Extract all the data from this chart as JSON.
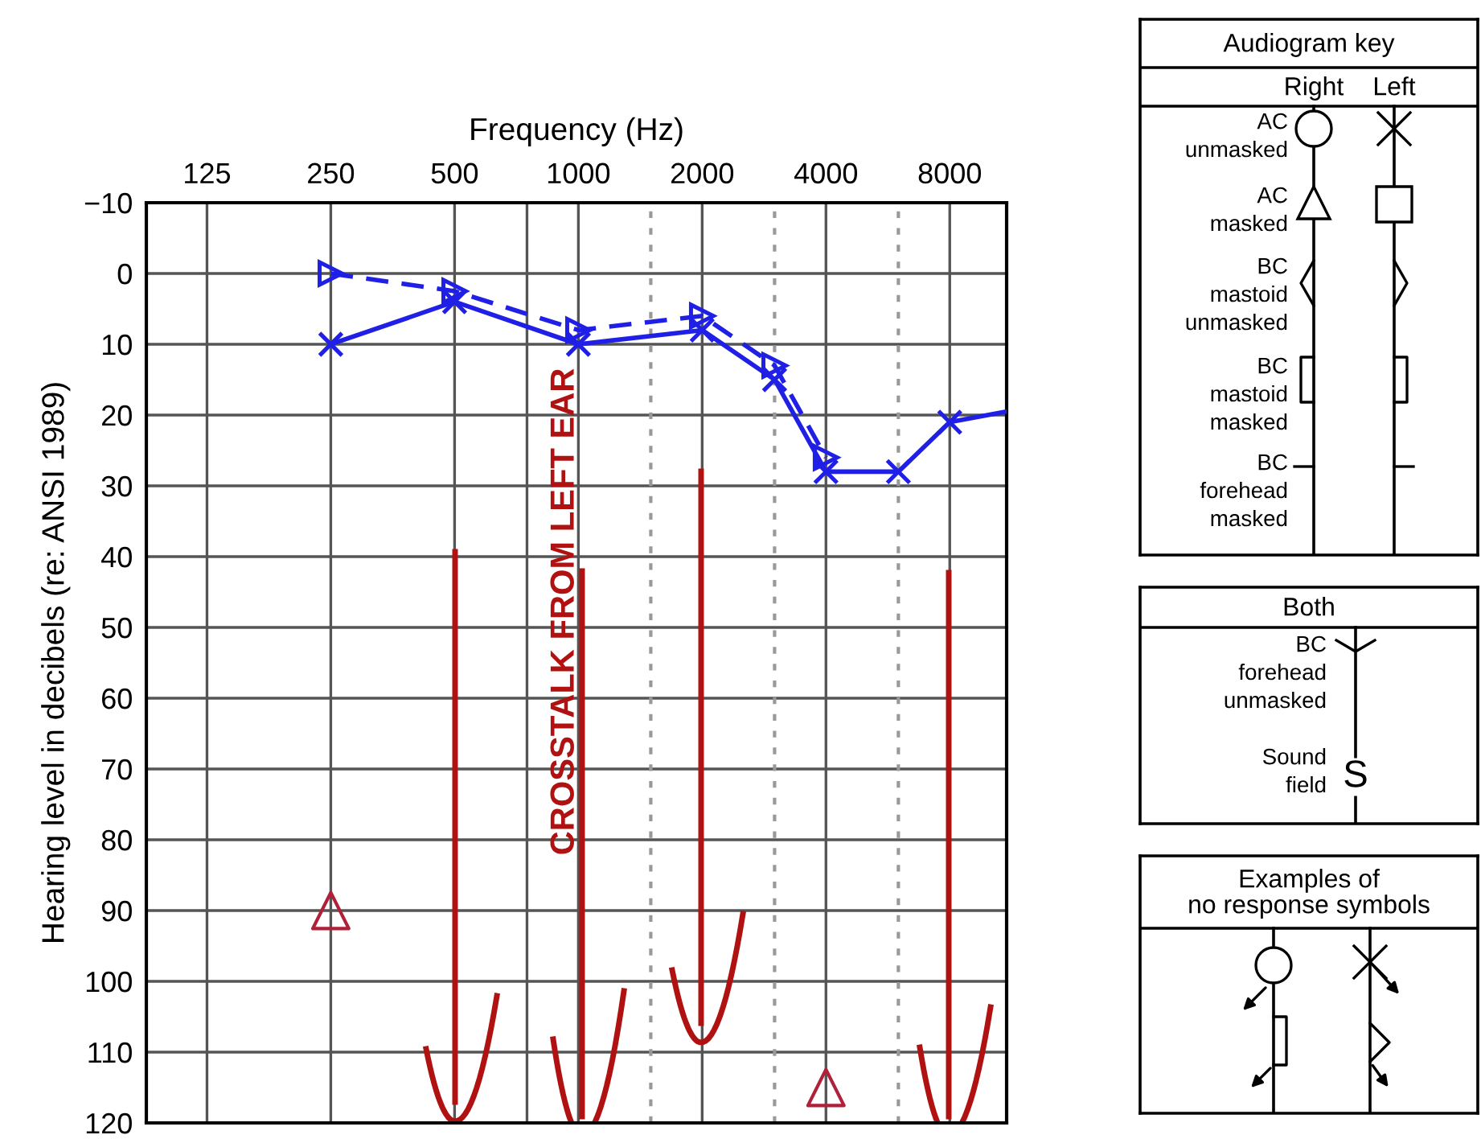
{
  "chart_data": [
    {
      "type": "line",
      "xlabel": "Frequency (Hz)",
      "ylabel": "Hearing level in decibels (re: ANSI 1989)",
      "log": "x",
      "xlim": [
        89,
        11000
      ],
      "xticks": [
        125,
        250,
        500,
        {
          "value": 750,
          "label": null
        },
        1000,
        2000,
        4000,
        8000
      ],
      "ylim": [
        120,
        -10
      ],
      "yticks": [
        {
          "value": -10,
          "label": "−10"
        },
        0,
        10,
        20,
        30,
        40,
        50,
        60,
        70,
        80,
        90,
        100,
        110,
        120
      ],
      "grid": true,
      "ref_lines": [
        {
          "axis": "x",
          "value": 1500,
          "color": "#999999",
          "line_style": "dotted"
        },
        {
          "axis": "x",
          "value": 3000,
          "color": "#999999",
          "line_style": "dotted"
        },
        {
          "axis": "x",
          "value": 6000,
          "color": "#999999",
          "line_style": "dotted"
        }
      ],
      "series": [
        {
          "type": "line",
          "color": "#1f1fe6",
          "marker": "triangle",
          "line_style": "dashed",
          "x": [
            250,
            500,
            1000,
            2000,
            3000,
            4000
          ],
          "values": [
            0,
            2.5,
            8,
            6,
            13,
            26
          ]
        },
        {
          "type": "line",
          "color": "#1f1fe6",
          "marker": "cross",
          "line_style": "solid",
          "x": [
            250,
            500,
            1000,
            2000,
            3000,
            4000,
            6000,
            8000
          ],
          "values": [
            10,
            4,
            10,
            8,
            15,
            28,
            28,
            21
          ]
        },
        {
          "type": "line",
          "color": "#1f1fe6",
          "marker": "none",
          "line_style": "solid",
          "x": [
            8000,
            11000
          ],
          "values": [
            21,
            19.5
          ]
        },
        {
          "type": "scatter",
          "color": "#b0203a",
          "marker": "triangle",
          "x": [
            250,
            4000
          ],
          "values": [
            90,
            115
          ]
        }
      ],
      "annotations": [
        "CROSSTALK FROM LEFT EAR"
      ]
    },
    {
      "type": "other",
      "title": "Audiogram key",
      "annotations": [
        "Right",
        "Left",
        "AC\nunmasked",
        "AC\nmasked",
        "BC\nmastoid\nunmasked",
        "BC\nmastoid\nmasked",
        "BC\nforehead\nmasked"
      ]
    },
    {
      "type": "other",
      "title": "Both",
      "annotations": [
        "BC\nforehead\nunmasked",
        "Sound\nfield",
        "S"
      ]
    },
    {
      "type": "other",
      "title": "Examples of\nno response symbols"
    }
  ]
}
